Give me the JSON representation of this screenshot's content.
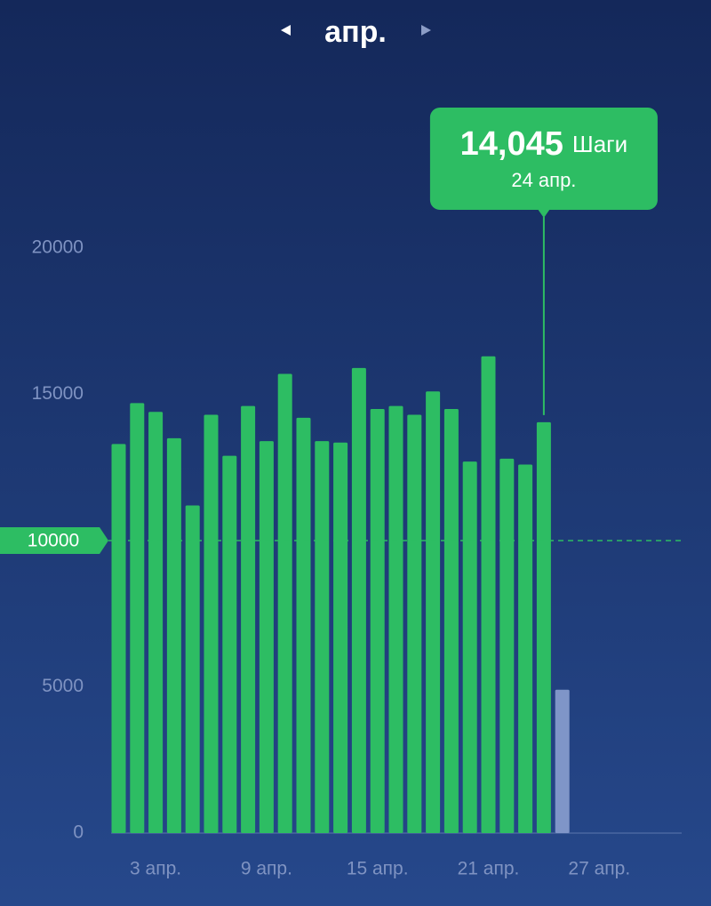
{
  "chart_data": {
    "type": "bar",
    "title": "апр.",
    "categories": [
      null,
      null,
      "3 апр.",
      null,
      null,
      null,
      null,
      null,
      "9 апр.",
      null,
      null,
      null,
      null,
      null,
      "15 апр.",
      null,
      null,
      null,
      null,
      null,
      "21 апр.",
      null,
      null,
      null,
      null,
      null,
      "27 апр.",
      null,
      null,
      null
    ],
    "values": [
      13300,
      14700,
      14400,
      13500,
      11200,
      14300,
      12900,
      14600,
      13400,
      15700,
      14200,
      13400,
      13350,
      15900,
      14500,
      14600,
      14300,
      15100,
      14500,
      12700,
      16300,
      12800,
      12600,
      14045,
      4900,
      null,
      null,
      null,
      null,
      null
    ],
    "color": "#2dbd63",
    "current_color": "#7f95c8",
    "ylim": [
      0,
      20000
    ],
    "yticks": [
      0,
      5000,
      15000,
      20000
    ],
    "goal": 10000,
    "tooltip": {
      "value": 14045,
      "value_label": "14,045",
      "unit": "Шаги",
      "date": "24 апр."
    }
  }
}
